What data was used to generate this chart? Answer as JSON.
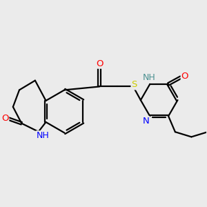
{
  "background_color": "#ebebeb",
  "line_color": "#000000",
  "atom_colors": {
    "O": "#ff0000",
    "N": "#0000ff",
    "S": "#cccc00",
    "NH_pyr": "#4a9090",
    "C": "#000000"
  },
  "figsize": [
    3.0,
    3.0
  ],
  "dpi": 100
}
